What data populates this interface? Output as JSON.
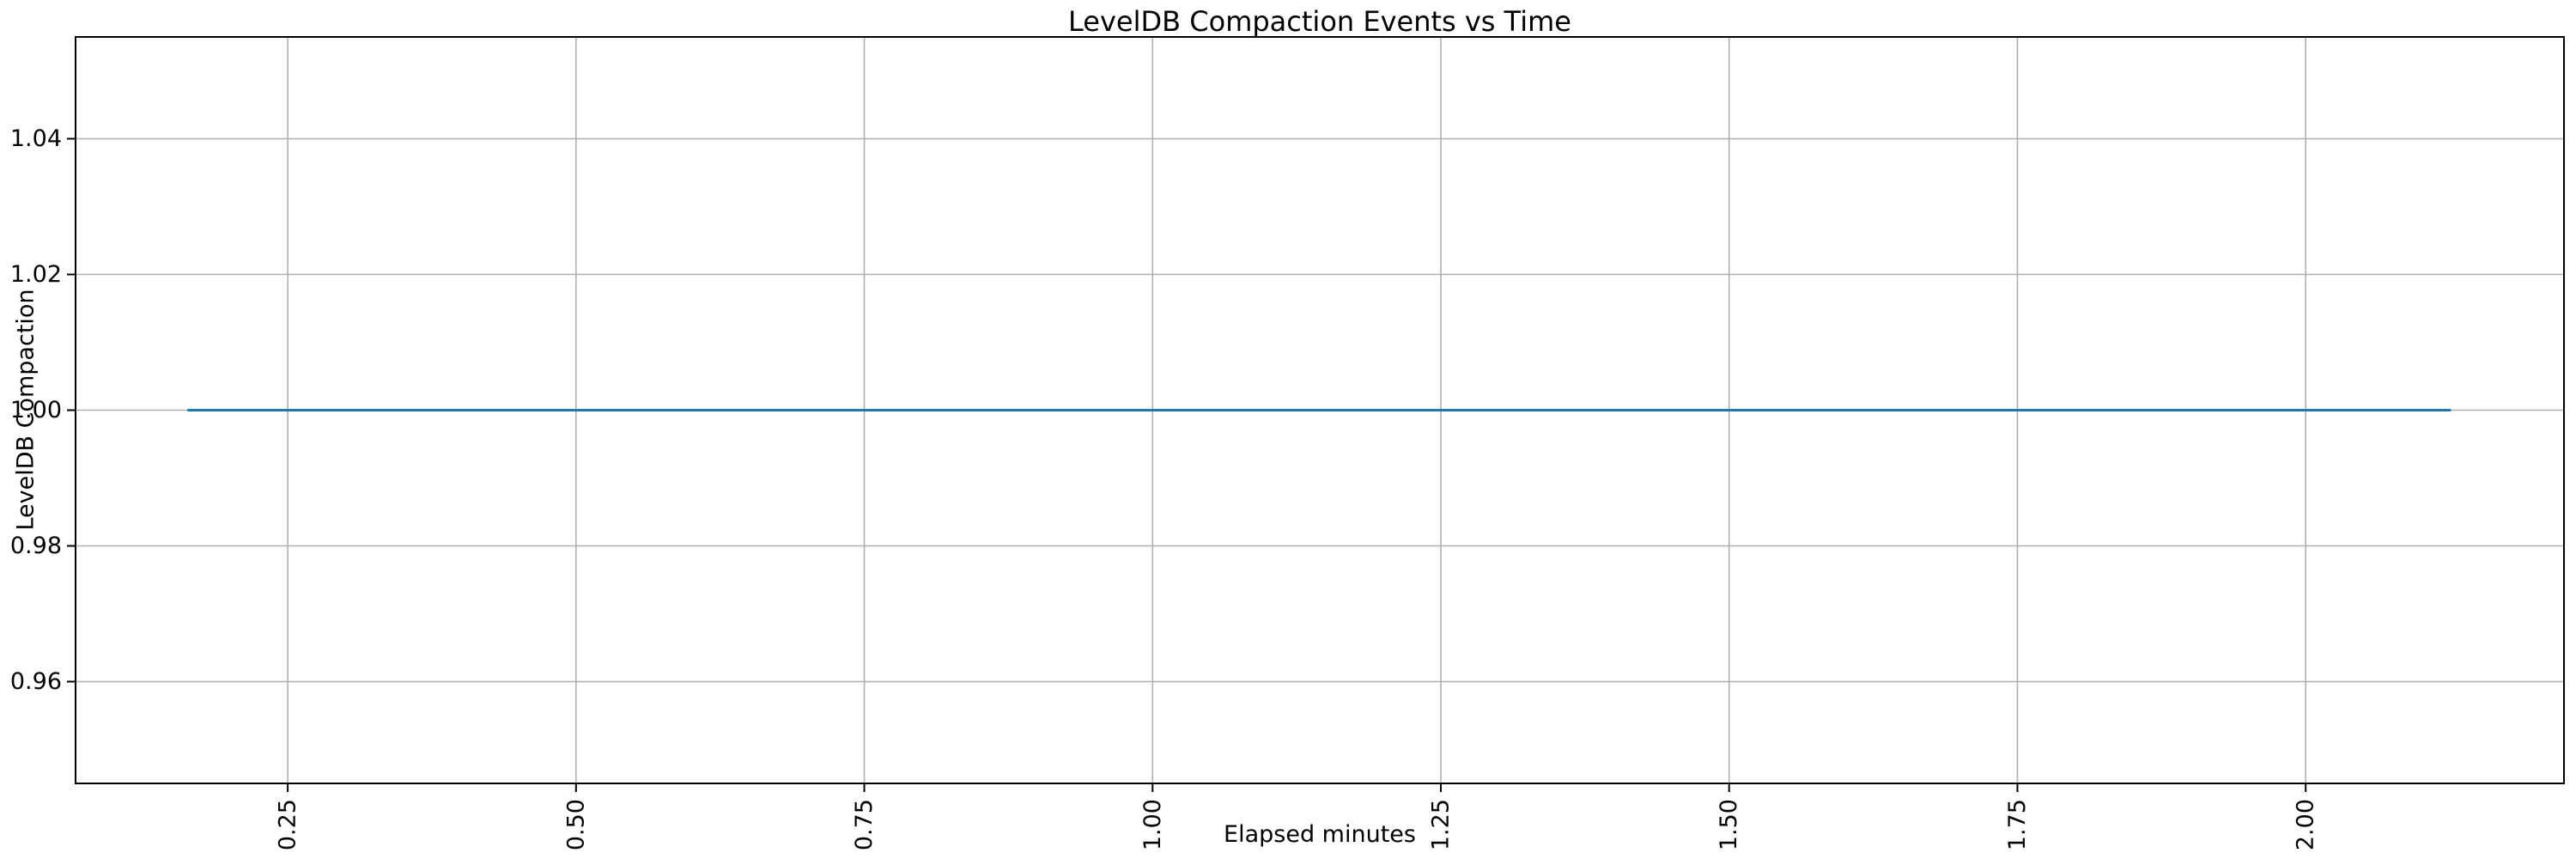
{
  "figure": {
    "background_color": "#ffffff"
  },
  "chart_data": {
    "type": "line",
    "title": "LevelDB Compaction Events vs Time",
    "xlabel": "Elapsed minutes",
    "ylabel": "LevelDB Compaction",
    "xlim": [
      0.066,
      2.224
    ],
    "ylim": [
      0.945,
      1.055
    ],
    "x_ticks": [
      "0.25",
      "0.50",
      "0.75",
      "1.00",
      "1.25",
      "1.50",
      "1.75",
      "2.00"
    ],
    "y_ticks": [
      "0.96",
      "0.98",
      "1.00",
      "1.02",
      "1.04"
    ],
    "x_tick_rotation": 90,
    "grid": true,
    "legend": false,
    "grid_color": "#b0b0b0",
    "spine_color": "#000000",
    "text_color": "#000000",
    "series": [
      {
        "name": "LevelDB Compaction",
        "color": "#1f77b4",
        "constant_value": 1.0,
        "x": [
          0.163,
          0.25,
          0.5,
          0.75,
          1.0,
          1.25,
          1.5,
          1.75,
          2.0,
          2.126
        ],
        "y": [
          1.0,
          1.0,
          1.0,
          1.0,
          1.0,
          1.0,
          1.0,
          1.0,
          1.0,
          1.0
        ]
      }
    ]
  }
}
